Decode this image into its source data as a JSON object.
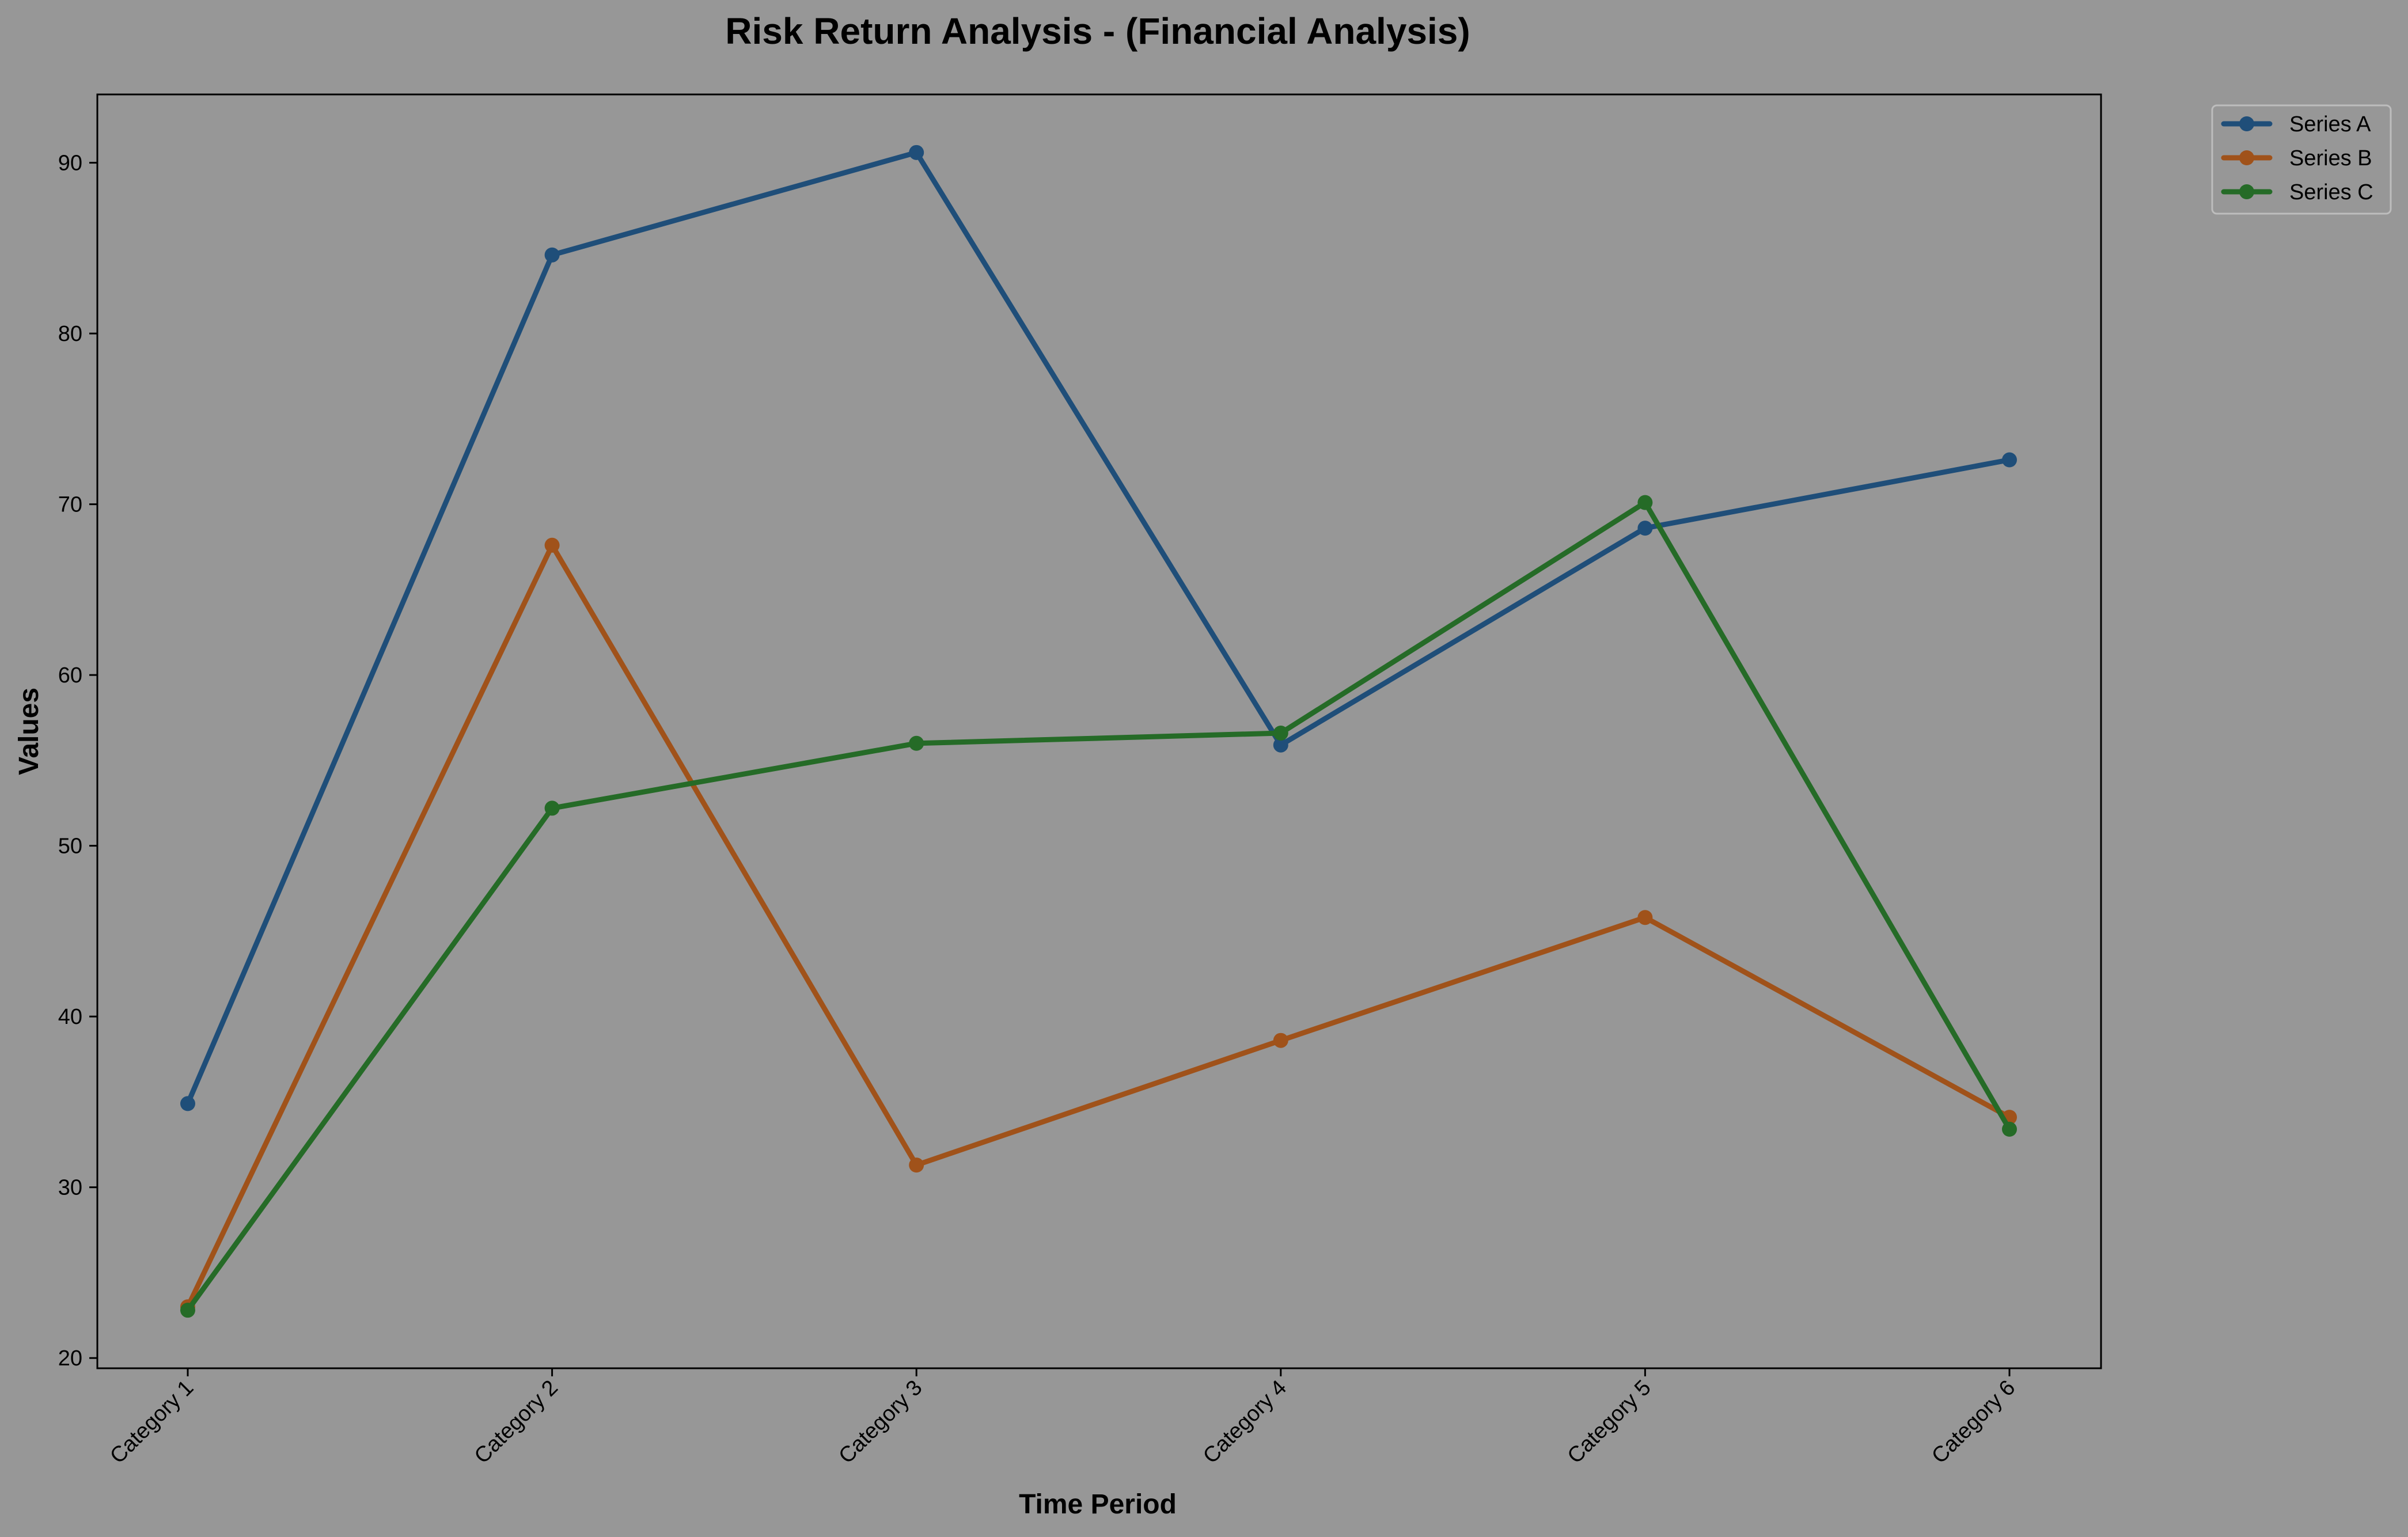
{
  "chart_data": {
    "type": "line",
    "title": "Risk Return Analysis - (Financial Analysis)",
    "xlabel": "Time Period",
    "ylabel": "Values",
    "categories": [
      "Category 1",
      "Category 2",
      "Category 3",
      "Category 4",
      "Category 5",
      "Category 6"
    ],
    "ylim": [
      19.4,
      94.0
    ],
    "yticks": [
      20,
      30,
      40,
      50,
      60,
      70,
      80,
      90
    ],
    "grid": false,
    "legend_position": "top-right, outside plot",
    "background_color": "#979797",
    "series": [
      {
        "name": "Series A",
        "color": "#1f4e79",
        "values": [
          34.9,
          84.6,
          90.6,
          55.9,
          68.6,
          72.6
        ]
      },
      {
        "name": "Series B",
        "color": "#a0521a",
        "values": [
          23.0,
          67.6,
          31.3,
          38.6,
          45.8,
          34.1
        ]
      },
      {
        "name": "Series C",
        "color": "#256b27",
        "values": [
          22.8,
          52.2,
          56.0,
          56.6,
          70.1,
          33.4
        ]
      }
    ]
  }
}
